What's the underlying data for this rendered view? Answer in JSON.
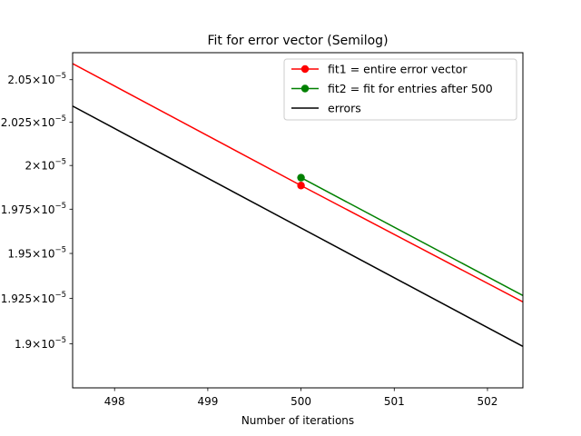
{
  "chart_data": {
    "type": "line",
    "title": "Fit for error vector (Semilog)",
    "xlabel": "Number of iterations",
    "ylabel": "",
    "yscale": "log",
    "xlim": [
      497.55,
      502.38
    ],
    "ylim": [
      1.876e-05,
      2.066e-05
    ],
    "grid": false,
    "legend_position": "top-right",
    "x_ticks": [
      {
        "value": 498,
        "label": "498"
      },
      {
        "value": 499,
        "label": "499"
      },
      {
        "value": 500,
        "label": "500"
      },
      {
        "value": 501,
        "label": "501"
      },
      {
        "value": 502,
        "label": "502"
      }
    ],
    "y_ticks": [
      {
        "value": 1.9e-05,
        "mantissa": "1.9",
        "exponent": "−5"
      },
      {
        "value": 1.925e-05,
        "mantissa": "1.925",
        "exponent": "−5"
      },
      {
        "value": 1.95e-05,
        "mantissa": "1.95",
        "exponent": "−5"
      },
      {
        "value": 1.975e-05,
        "mantissa": "1.975",
        "exponent": "−5"
      },
      {
        "value": 2e-05,
        "mantissa": "2",
        "exponent": "−5"
      },
      {
        "value": 2.025e-05,
        "mantissa": "2.025",
        "exponent": "−5"
      },
      {
        "value": 2.05e-05,
        "mantissa": "2.05",
        "exponent": "−5"
      }
    ],
    "series": [
      {
        "name": "fit1 = entire error vector",
        "color": "#ff0000",
        "marker": "circle",
        "x": [
          500,
          502.38
        ],
        "y": [
          1.9885e-05,
          1.923e-05
        ],
        "line_back": {
          "x": 497.55,
          "y": 2.0595e-05
        }
      },
      {
        "name": "fit2 = fit for entries after 500",
        "color": "#008000",
        "marker": "circle",
        "x": [
          500,
          502.38
        ],
        "y": [
          1.993e-05,
          1.9265e-05
        ]
      },
      {
        "name": "errors",
        "color": "#000000",
        "marker": "none",
        "x": [
          497.55,
          502.38
        ],
        "y": [
          2.0345e-05,
          1.8985e-05
        ]
      }
    ]
  }
}
